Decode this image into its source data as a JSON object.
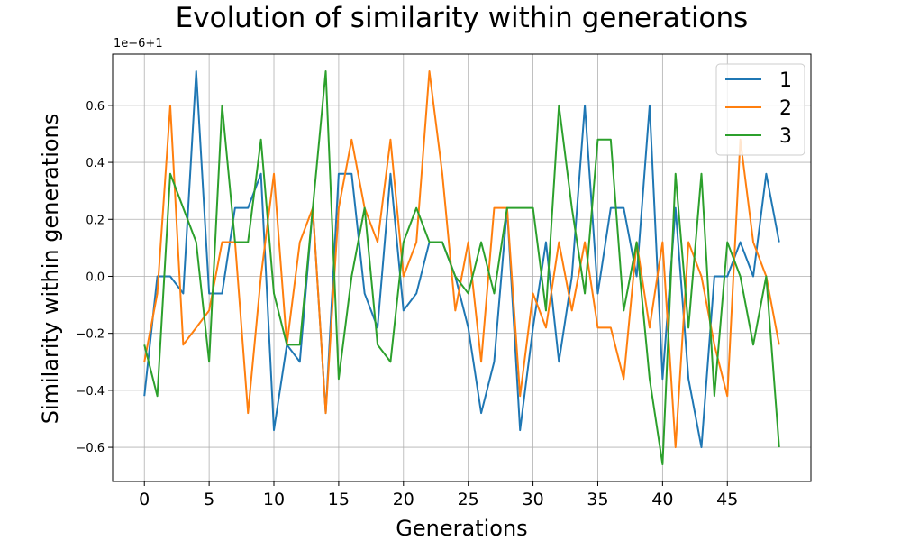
{
  "chart_data": {
    "type": "line",
    "title": "Evolution of similarity within generations",
    "xlabel": "Generations",
    "ylabel": "Similarity within generations",
    "offset_text": "1e−6+1",
    "xlim": [
      -2.45,
      51.45
    ],
    "ylim": [
      -0.72,
      0.78
    ],
    "xticks": [
      0,
      5,
      10,
      15,
      20,
      25,
      30,
      35,
      40,
      45
    ],
    "yticks": [
      -0.6,
      -0.4,
      -0.2,
      0.0,
      0.2,
      0.4,
      0.6
    ],
    "ytick_labels": [
      "−0.6",
      "−0.4",
      "−0.2",
      "0.0",
      "0.2",
      "0.4",
      "0.6"
    ],
    "grid": true,
    "legend_position": "top-right",
    "x": [
      0,
      1,
      2,
      3,
      4,
      5,
      6,
      7,
      8,
      9,
      10,
      11,
      12,
      13,
      14,
      15,
      16,
      17,
      18,
      19,
      20,
      21,
      22,
      23,
      24,
      25,
      26,
      27,
      28,
      29,
      30,
      31,
      32,
      33,
      34,
      35,
      36,
      37,
      38,
      39,
      40,
      41,
      42,
      43,
      44,
      45,
      46,
      47,
      48,
      49
    ],
    "series": [
      {
        "name": "1",
        "color": "#1f77b4",
        "values": [
          -0.42,
          0.0,
          0.0,
          -0.06,
          0.72,
          -0.06,
          -0.06,
          0.24,
          0.24,
          0.36,
          -0.54,
          -0.24,
          -0.3,
          0.24,
          -0.48,
          0.36,
          0.36,
          -0.06,
          -0.18,
          0.36,
          -0.12,
          -0.06,
          0.12,
          0.12,
          0.0,
          -0.18,
          -0.48,
          -0.3,
          0.24,
          -0.54,
          -0.18,
          0.12,
          -0.3,
          0.0,
          0.6,
          -0.06,
          0.24,
          0.24,
          0.0,
          0.6,
          -0.36,
          0.24,
          -0.36,
          -0.6,
          0.0,
          0.0,
          0.12,
          0.0,
          0.36,
          0.12
        ]
      },
      {
        "name": "2",
        "color": "#ff7f0e",
        "values": [
          -0.3,
          -0.06,
          0.6,
          -0.24,
          -0.18,
          -0.12,
          0.12,
          0.12,
          -0.48,
          0.0,
          0.36,
          -0.24,
          0.12,
          0.24,
          -0.48,
          0.24,
          0.48,
          0.24,
          0.12,
          0.48,
          0.0,
          0.12,
          0.72,
          0.36,
          -0.12,
          0.12,
          -0.3,
          0.24,
          0.24,
          -0.42,
          -0.06,
          -0.18,
          0.12,
          -0.12,
          0.12,
          -0.18,
          -0.18,
          -0.36,
          0.12,
          -0.18,
          0.12,
          -0.6,
          0.12,
          0.0,
          -0.24,
          -0.42,
          0.48,
          0.12,
          0.0,
          -0.24
        ]
      },
      {
        "name": "3",
        "color": "#2ca02c",
        "values": [
          -0.24,
          -0.42,
          0.36,
          0.24,
          0.12,
          -0.3,
          0.6,
          0.12,
          0.12,
          0.48,
          -0.06,
          -0.24,
          -0.24,
          0.24,
          0.72,
          -0.36,
          0.0,
          0.24,
          -0.24,
          -0.3,
          0.12,
          0.24,
          0.12,
          0.12,
          0.0,
          -0.06,
          0.12,
          -0.06,
          0.24,
          0.24,
          0.24,
          -0.12,
          0.6,
          0.24,
          -0.06,
          0.48,
          0.48,
          -0.12,
          0.12,
          -0.36,
          -0.66,
          0.36,
          -0.18,
          0.36,
          -0.42,
          0.12,
          0.0,
          -0.24,
          0.0,
          -0.6
        ]
      }
    ]
  }
}
